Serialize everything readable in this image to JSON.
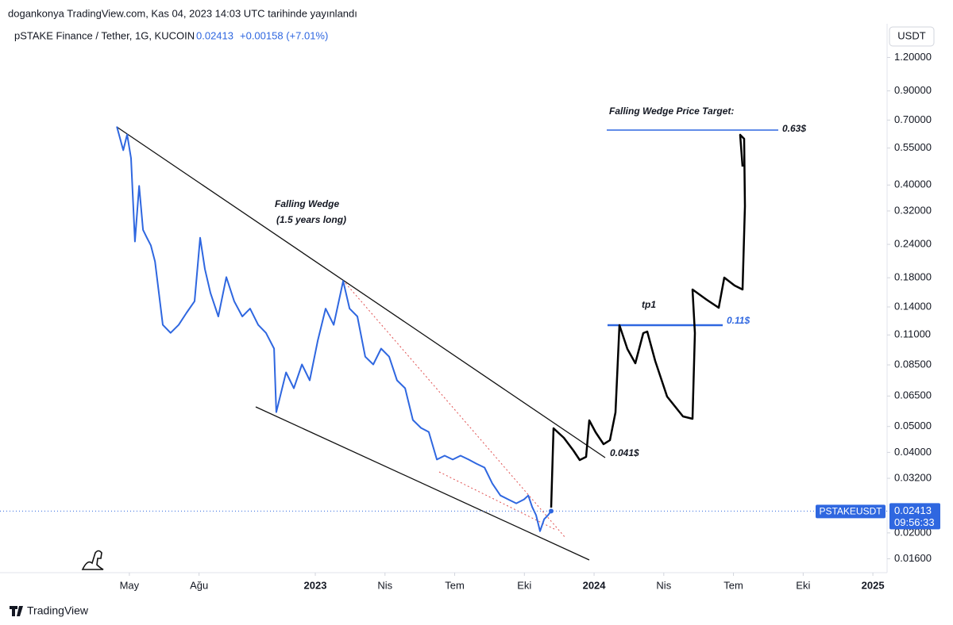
{
  "chart_data": {
    "type": "line",
    "published": "dogankonya TradingView.com, Kas 04, 2023 14:03 UTC tarihinde yayınlandı",
    "symbol": "pSTAKE Finance / Tether, 1G, KUCOIN",
    "change": "+0.00158 (+7.01%)",
    "currency": "USDT",
    "ticker": "PSTAKEUSDT",
    "countdown": "09:56:33",
    "brand": "TradingView",
    "log_scale": true,
    "grid": false,
    "annotations": [
      "Falling Wedge",
      "(1.5 years long)",
      "Falling Wedge Price Target:",
      "0.63$",
      "tp1",
      "0.11$",
      "0.041$"
    ],
    "xlim": [
      2021.869,
      2025.051
    ],
    "xticks": [
      {
        "value": 2022.333,
        "label": "May"
      },
      {
        "value": 2022.583,
        "label": "Ağu"
      },
      2023,
      {
        "value": 2023.25,
        "label": "Nis"
      },
      {
        "value": 2023.5,
        "label": "Tem"
      },
      {
        "value": 2023.75,
        "label": "Eki"
      },
      2024,
      {
        "value": 2024.25,
        "label": "Nis"
      },
      {
        "value": 2024.5,
        "label": "Tem"
      },
      {
        "value": 2024.75,
        "label": "Eki"
      },
      2025
    ],
    "ylim": [
      0.0142,
      1.55
    ],
    "yticks": [
      {
        "value": 1.2,
        "label": "1.20000"
      },
      {
        "value": 0.9,
        "label": "0.90000"
      },
      {
        "value": 0.7,
        "label": "0.70000"
      },
      {
        "value": 0.55,
        "label": "0.55000"
      },
      {
        "value": 0.4,
        "label": "0.40000"
      },
      {
        "value": 0.32,
        "label": "0.32000"
      },
      {
        "value": 0.24,
        "label": "0.24000"
      },
      {
        "value": 0.18,
        "label": "0.18000"
      },
      {
        "value": 0.14,
        "label": "0.14000"
      },
      {
        "value": 0.11,
        "label": "0.11000"
      },
      {
        "value": 0.085,
        "label": "0.08500"
      },
      {
        "value": 0.065,
        "label": "0.06500"
      },
      {
        "value": 0.05,
        "label": "0.05000"
      },
      {
        "value": 0.04,
        "label": "0.04000"
      },
      {
        "value": 0.032,
        "label": "0.03200"
      },
      {
        "value": 0.02,
        "label": "0.02000"
      },
      {
        "value": 0.016,
        "label": "0.01600"
      }
    ],
    "series": [
      {
        "name": "PSTAKEUSDT",
        "color": "#2f67e0",
        "x": [
          2022.288,
          2022.311,
          2022.325,
          2022.339,
          2022.353,
          2022.368,
          2022.382,
          2022.396,
          2022.41,
          2022.425,
          2022.453,
          2022.481,
          2022.51,
          2022.538,
          2022.567,
          2022.587,
          2022.604,
          2022.624,
          2022.652,
          2022.681,
          2022.709,
          2022.738,
          2022.766,
          2022.795,
          2022.823,
          2022.852,
          2022.86,
          2022.895,
          2022.923,
          2022.952,
          2022.98,
          2023.009,
          2023.037,
          2023.066,
          2023.1,
          2023.123,
          2023.151,
          2023.179,
          2023.208,
          2023.236,
          2023.265,
          2023.293,
          2023.322,
          2023.35,
          2023.379,
          2023.407,
          2023.436,
          2023.464,
          2023.493,
          2023.521,
          2023.55,
          2023.578,
          2023.607,
          2023.635,
          2023.664,
          2023.692,
          2023.721,
          2023.749,
          2023.764,
          2023.778,
          2023.792,
          2023.806,
          2023.821,
          2023.835,
          2023.846
        ],
        "values": [
          0.662,
          0.54,
          0.618,
          0.504,
          0.246,
          0.397,
          0.272,
          0.254,
          0.238,
          0.207,
          0.12,
          0.112,
          0.12,
          0.133,
          0.147,
          0.254,
          0.194,
          0.158,
          0.129,
          0.181,
          0.147,
          0.129,
          0.138,
          0.12,
          0.112,
          0.0978,
          0.0566,
          0.0797,
          0.0695,
          0.0853,
          0.0744,
          0.105,
          0.138,
          0.12,
          0.175,
          0.138,
          0.129,
          0.0912,
          0.0853,
          0.0978,
          0.0912,
          0.0744,
          0.0695,
          0.0529,
          0.0494,
          0.0477,
          0.0376,
          0.0389,
          0.0376,
          0.0389,
          0.0376,
          0.0363,
          0.0351,
          0.0306,
          0.0276,
          0.0267,
          0.0258,
          0.0267,
          0.0276,
          0.025,
          0.0233,
          0.0203,
          0.0225,
          0.0233,
          0.02413
        ]
      }
    ]
  }
}
